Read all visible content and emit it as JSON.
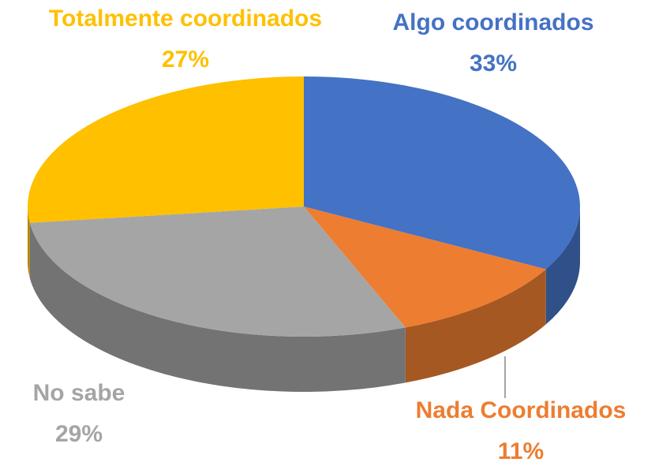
{
  "chart_data": {
    "type": "pie",
    "categories": [
      "Algo coordinados",
      "Nada Coordinados",
      "No sabe",
      "Totalmente coordinados"
    ],
    "values": [
      33,
      11,
      29,
      27
    ],
    "value_labels": [
      "33%",
      "11%",
      "29%",
      "27%"
    ],
    "colors": [
      "#4472c4",
      "#ed7d31",
      "#a5a5a5",
      "#ffc000"
    ]
  }
}
